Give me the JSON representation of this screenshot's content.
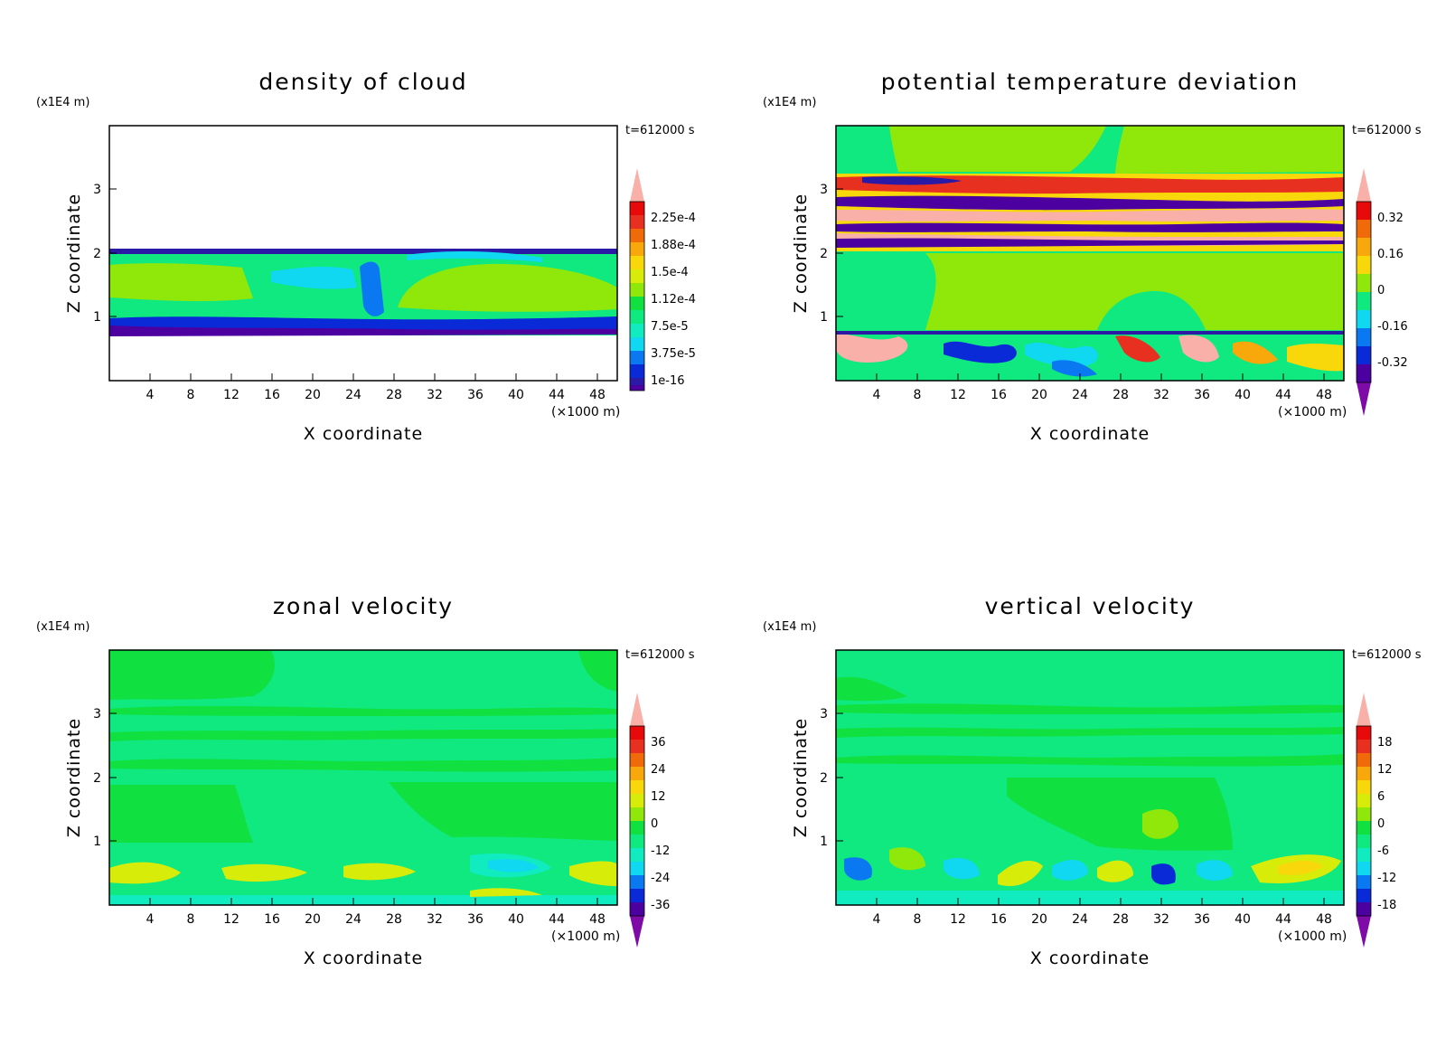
{
  "colors": {
    "scale": [
      "#7e0aa8",
      "#4d00a0",
      "#2a1aa5",
      "#0a2ad8",
      "#0a78f0",
      "#10d8f0",
      "#10ecc0",
      "#10e880",
      "#10e040",
      "#90e80a",
      "#d8ec0a",
      "#f8d80a",
      "#f8a80a",
      "#f06a0a",
      "#e83020",
      "#e80a0a",
      "#f8b0a8"
    ],
    "panel_bg": "#10e880",
    "cloud_body": "#90e80a"
  },
  "chart_data": [
    {
      "type": "heatmap",
      "title": "density of cloud",
      "xlabel": "X coordinate",
      "ylabel": "Z coordinate",
      "x_unit": "(×1000 m)",
      "y_unit": "(x1E4 m)",
      "time_label": "t=612000 s",
      "x_ticks": [
        "4",
        "8",
        "12",
        "16",
        "20",
        "24",
        "28",
        "32",
        "36",
        "40",
        "44",
        "48"
      ],
      "y_ticks": [
        "1",
        "2",
        "3"
      ],
      "xlim": [
        0,
        50
      ],
      "ylim": [
        0,
        4
      ],
      "colorbar_labels": [
        "2.25e-4",
        "1.88e-4",
        "1.5e-4",
        "1.12e-4",
        "7.5e-5",
        "3.75e-5",
        "1e-16"
      ],
      "colorbar_range": [
        1e-16,
        0.000225
      ],
      "cloud_layer_z": [
        0.75,
        2.05
      ]
    },
    {
      "type": "heatmap",
      "title": "potential temperature deviation",
      "xlabel": "X coordinate",
      "ylabel": "Z coordinate",
      "x_unit": "(×1000 m)",
      "y_unit": "(x1E4 m)",
      "time_label": "t=612000 s",
      "x_ticks": [
        "4",
        "8",
        "12",
        "16",
        "20",
        "24",
        "28",
        "32",
        "36",
        "40",
        "44",
        "48"
      ],
      "y_ticks": [
        "1",
        "2",
        "3"
      ],
      "xlim": [
        0,
        50
      ],
      "ylim": [
        0,
        4
      ],
      "colorbar_labels": [
        "0.32",
        "0.16",
        "0",
        "-0.16",
        "-0.32"
      ],
      "colorbar_range": [
        -0.32,
        0.32
      ]
    },
    {
      "type": "heatmap",
      "title": "zonal velocity",
      "xlabel": "X coordinate",
      "ylabel": "Z coordinate",
      "x_unit": "(×1000 m)",
      "y_unit": "(x1E4 m)",
      "time_label": "t=612000 s",
      "x_ticks": [
        "4",
        "8",
        "12",
        "16",
        "20",
        "24",
        "28",
        "32",
        "36",
        "40",
        "44",
        "48"
      ],
      "y_ticks": [
        "1",
        "2",
        "3"
      ],
      "xlim": [
        0,
        50
      ],
      "ylim": [
        0,
        4
      ],
      "colorbar_labels": [
        "36",
        "24",
        "12",
        "0",
        "-12",
        "-24",
        "-36"
      ],
      "colorbar_range": [
        -36,
        36
      ]
    },
    {
      "type": "heatmap",
      "title": "vertical velocity",
      "xlabel": "X coordinate",
      "ylabel": "Z coordinate",
      "x_unit": "(×1000 m)",
      "y_unit": "(x1E4 m)",
      "time_label": "t=612000 s",
      "x_ticks": [
        "4",
        "8",
        "12",
        "16",
        "20",
        "24",
        "28",
        "32",
        "36",
        "40",
        "44",
        "48"
      ],
      "y_ticks": [
        "1",
        "2",
        "3"
      ],
      "xlim": [
        0,
        50
      ],
      "ylim": [
        0,
        4
      ],
      "colorbar_labels": [
        "18",
        "12",
        "6",
        "0",
        "-6",
        "-12",
        "-18"
      ],
      "colorbar_range": [
        -18,
        18
      ]
    }
  ]
}
